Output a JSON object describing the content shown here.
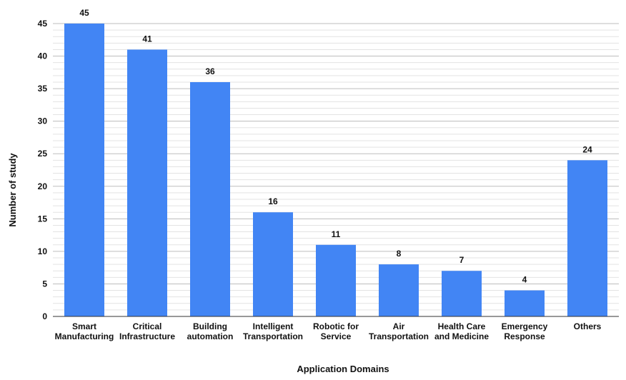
{
  "chart_data": {
    "type": "bar",
    "title": "",
    "xlabel": "Application Domains",
    "ylabel": "Number of study",
    "ylim": [
      0,
      45
    ],
    "yticks": [
      0,
      5,
      10,
      15,
      20,
      25,
      30,
      35,
      40,
      45
    ],
    "grid": true,
    "legend": "none",
    "categories": [
      [
        "Smart",
        "Manufacturing"
      ],
      [
        "Critical",
        "Infrastructure"
      ],
      [
        "Building",
        "automation"
      ],
      [
        "Intelligent",
        "Transportation"
      ],
      [
        "Robotic for",
        "Service"
      ],
      [
        "Air",
        "Transportation"
      ],
      [
        "Health Care",
        "and Medicine"
      ],
      [
        "Emergency",
        "Response"
      ],
      [
        "Others"
      ]
    ],
    "values": [
      45,
      41,
      36,
      16,
      11,
      8,
      7,
      4,
      24
    ],
    "bar_color": "#4285f4",
    "grid_color": "#cccccc",
    "axis_color": "#333333",
    "text_color": "#111111"
  }
}
